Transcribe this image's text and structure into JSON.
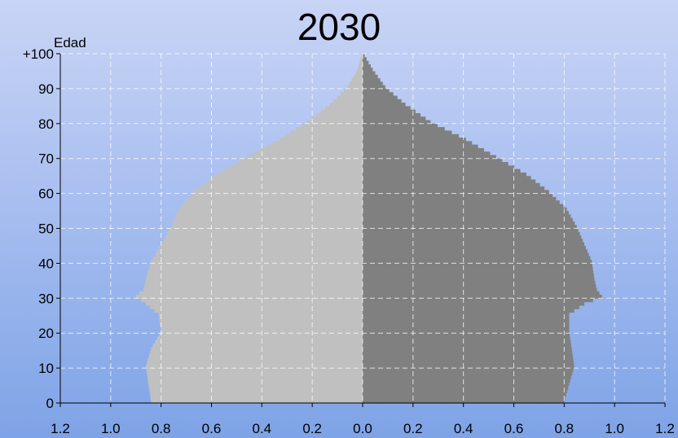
{
  "chart_data": {
    "type": "bar",
    "orientation": "horizontal-population-pyramid",
    "title": "2030",
    "ylabel": "Edad",
    "y_ticks": [
      "0",
      "10",
      "20",
      "30",
      "40",
      "50",
      "60",
      "70",
      "80",
      "90",
      "+100"
    ],
    "x_ticks": [
      "1.2",
      "1.0",
      "0.8",
      "0.6",
      "0.4",
      "0.2",
      "0.0",
      "0.2",
      "0.4",
      "0.6",
      "0.8",
      "1.0",
      "1.2"
    ],
    "xlim": [
      -1.2,
      1.2
    ],
    "ylim": [
      0,
      100
    ],
    "grid": true,
    "colors": {
      "left_series": "#c0c0c0",
      "right_series": "#808080"
    },
    "ages": [
      0,
      5,
      10,
      15,
      20,
      25,
      28,
      30,
      32,
      35,
      40,
      45,
      50,
      55,
      60,
      65,
      70,
      75,
      80,
      85,
      90,
      95,
      100
    ],
    "series": [
      {
        "side": "left",
        "values": [
          0.84,
          0.85,
          0.86,
          0.84,
          0.8,
          0.81,
          0.86,
          0.9,
          0.87,
          0.86,
          0.84,
          0.8,
          0.76,
          0.73,
          0.67,
          0.58,
          0.46,
          0.33,
          0.22,
          0.13,
          0.06,
          0.02,
          0.0
        ]
      },
      {
        "side": "right",
        "values": [
          0.8,
          0.82,
          0.84,
          0.83,
          0.82,
          0.82,
          0.88,
          0.95,
          0.93,
          0.92,
          0.91,
          0.88,
          0.85,
          0.81,
          0.74,
          0.65,
          0.53,
          0.41,
          0.27,
          0.17,
          0.09,
          0.04,
          0.0
        ]
      }
    ]
  }
}
